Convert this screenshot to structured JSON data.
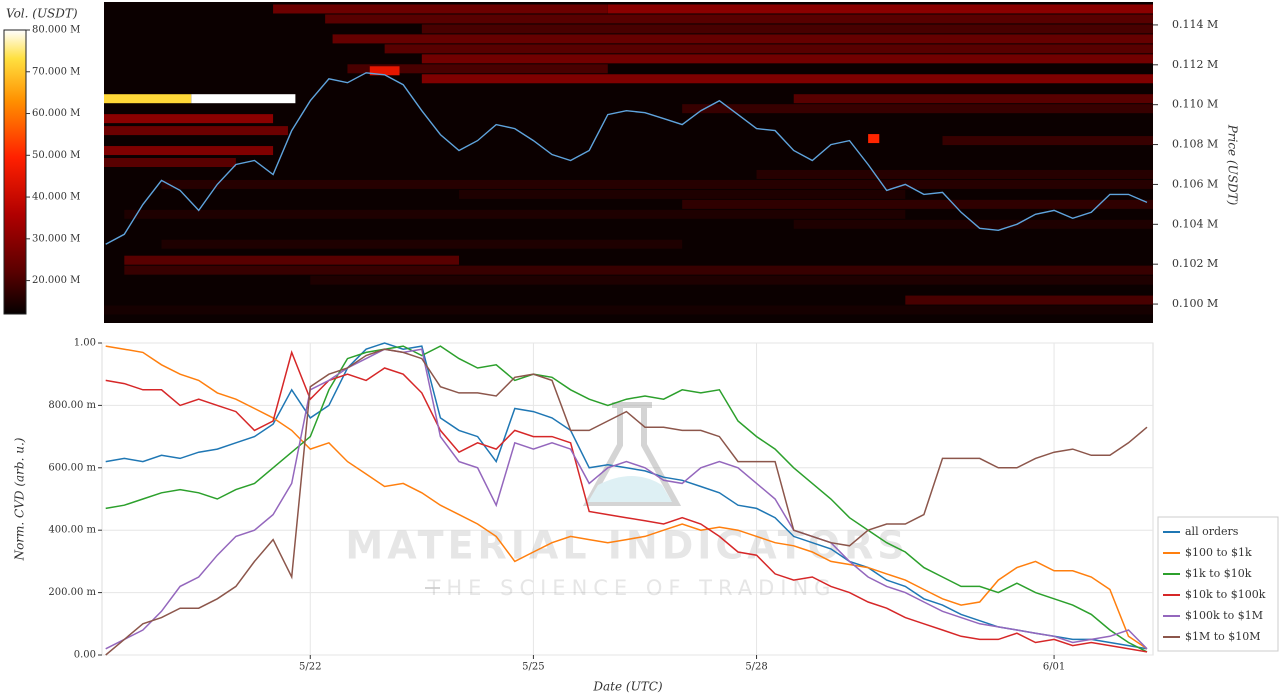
{
  "chart_data": [
    {
      "type": "heatmap",
      "y_label": "Price (USDT)",
      "colorbar_label": "Vol. (USDT)",
      "xlim": [
        -2.8,
        11.33
      ],
      "ylim": [
        0.09905,
        0.11515
      ],
      "yticks": [
        {
          "value": 0.1,
          "label": "0.100 M"
        },
        {
          "value": 0.102,
          "label": "0.102 M"
        },
        {
          "value": 0.104,
          "label": "0.104 M"
        },
        {
          "value": 0.106,
          "label": "0.106 M"
        },
        {
          "value": 0.108,
          "label": "0.108 M"
        },
        {
          "value": 0.11,
          "label": "0.110 M"
        },
        {
          "value": 0.112,
          "label": "0.112 M"
        },
        {
          "value": 0.114,
          "label": "0.114 M"
        }
      ],
      "clim": [
        12,
        80
      ],
      "cticks": [
        {
          "value": 20,
          "label": "20.000 M"
        },
        {
          "value": 30,
          "label": "30.000 M"
        },
        {
          "value": 40,
          "label": "40.000 M"
        },
        {
          "value": 50,
          "label": "50.000 M"
        },
        {
          "value": 60,
          "label": "60.000 M"
        },
        {
          "value": 70,
          "label": "70.000 M"
        },
        {
          "value": 80,
          "label": "80.000 M"
        }
      ],
      "heatmap": {
        "price": [
          0.1148,
          0.1148,
          0.1143,
          0.1138,
          0.1133,
          0.1128,
          0.1123,
          0.1118,
          0.1117,
          0.1113,
          0.1103,
          0.1103,
          0.1103,
          0.1098,
          0.1093,
          0.1087,
          0.1083,
          0.1082,
          0.1077,
          0.1071,
          0.1065,
          0.106,
          0.1055,
          0.105,
          0.1045,
          0.104,
          0.103,
          0.1022,
          0.1017,
          0.1012,
          0.1002,
          0.0997
        ],
        "start": [
          4.0,
          -0.5,
          0.2,
          1.5,
          0.3,
          1.0,
          1.5,
          0.5,
          0.8,
          1.5,
          -2.8,
          -1.6,
          6.5,
          5.0,
          -2.8,
          -2.8,
          7.5,
          8.5,
          -2.8,
          -2.8,
          6.0,
          -2.0,
          2.0,
          5.0,
          -2.5,
          6.5,
          -2.0,
          -2.5,
          -2.5,
          0.0,
          8.0,
          -2.8
        ],
        "end": [
          11.33,
          4.0,
          11.33,
          11.33,
          11.33,
          11.33,
          11.33,
          4.0,
          1.2,
          11.33,
          -1.6,
          -0.2,
          11.33,
          11.33,
          -0.5,
          -0.3,
          7.65,
          11.33,
          -0.5,
          -1.0,
          11.33,
          11.33,
          8.0,
          11.33,
          8.0,
          11.33,
          5.0,
          2.0,
          11.33,
          11.33,
          11.33,
          11.33
        ],
        "volume": [
          30,
          25,
          22,
          20,
          24,
          22,
          26,
          20,
          45,
          28,
          72,
          80,
          22,
          18,
          30,
          25,
          50,
          18,
          28,
          22,
          16,
          16,
          15,
          17,
          15,
          15,
          15,
          22,
          18,
          15,
          20,
          14
        ]
      },
      "x": [
        -2.75,
        -2.5,
        -2.25,
        -2,
        -1.75,
        -1.5,
        -1.25,
        -1,
        -0.75,
        -0.5,
        -0.25,
        0,
        0.25,
        0.5,
        0.75,
        1,
        1.25,
        1.5,
        1.75,
        2,
        2.25,
        2.5,
        2.75,
        3,
        3.25,
        3.5,
        3.75,
        4,
        4.25,
        4.5,
        4.75,
        5,
        5.25,
        5.5,
        5.75,
        6,
        6.25,
        6.5,
        6.75,
        7,
        7.25,
        7.5,
        7.75,
        8,
        8.25,
        8.5,
        8.75,
        9,
        9.25,
        9.5,
        9.75,
        10,
        10.25,
        10.5,
        10.75,
        11,
        11.25
      ],
      "series": [
        {
          "color": "#5fa3dc",
          "values": [
            0.103,
            0.1035,
            0.105,
            0.1062,
            0.1057,
            0.1047,
            0.106,
            0.107,
            0.1072,
            0.1065,
            0.1087,
            0.1102,
            0.1113,
            0.1111,
            0.1116,
            0.1115,
            0.111,
            0.1097,
            0.1085,
            0.1077,
            0.1082,
            0.109,
            0.1088,
            0.1082,
            0.1075,
            0.1072,
            0.1077,
            0.1095,
            0.1097,
            0.1096,
            0.1093,
            0.109,
            0.1097,
            0.1102,
            0.1095,
            0.1088,
            0.1087,
            0.1077,
            0.1072,
            0.108,
            0.1082,
            0.107,
            0.1057,
            0.106,
            0.1055,
            0.1056,
            0.1046,
            0.1038,
            0.1037,
            0.104,
            0.1045,
            0.1047,
            0.1043,
            0.1046,
            0.1055,
            0.1055,
            0.1051
          ]
        }
      ]
    },
    {
      "type": "line",
      "x_label": "Date (UTC)",
      "y_label": "Norm. CVD (arb. u.)",
      "xlim": [
        -2.8,
        11.33
      ],
      "ylim": [
        0,
        1
      ],
      "xticks": [
        {
          "value": 0,
          "label": "5/22"
        },
        {
          "value": 3,
          "label": "5/25"
        },
        {
          "value": 6,
          "label": "5/28"
        },
        {
          "value": 10,
          "label": "6/01"
        }
      ],
      "yticks": [
        {
          "value": 0,
          "label": "0.00"
        },
        {
          "value": 0.2,
          "label": "200.00 m"
        },
        {
          "value": 0.4,
          "label": "400.00 m"
        },
        {
          "value": 0.6,
          "label": "600.00 m"
        },
        {
          "value": 0.8,
          "label": "800.00 m"
        },
        {
          "value": 1,
          "label": "1.00"
        }
      ],
      "grid": true,
      "legend": "right",
      "watermark": {
        "title": "MATERIAL INDICATORS",
        "subtitle": "THE SCIENCE OF TRADING"
      },
      "x": [
        -2.75,
        -2.5,
        -2.25,
        -2,
        -1.75,
        -1.5,
        -1.25,
        -1,
        -0.75,
        -0.5,
        -0.25,
        0,
        0.25,
        0.5,
        0.75,
        1,
        1.25,
        1.5,
        1.75,
        2,
        2.25,
        2.5,
        2.75,
        3,
        3.25,
        3.5,
        3.75,
        4,
        4.25,
        4.5,
        4.75,
        5,
        5.25,
        5.5,
        5.75,
        6,
        6.25,
        6.5,
        6.75,
        7,
        7.25,
        7.5,
        7.75,
        8,
        8.25,
        8.5,
        8.75,
        9,
        9.25,
        9.5,
        9.75,
        10,
        10.25,
        10.5,
        10.75,
        11,
        11.25
      ],
      "series": [
        {
          "name": "all orders",
          "color": "#1f77b4",
          "values": [
            0.62,
            0.63,
            0.62,
            0.64,
            0.63,
            0.65,
            0.66,
            0.68,
            0.7,
            0.74,
            0.85,
            0.76,
            0.8,
            0.92,
            0.98,
            1.0,
            0.98,
            0.99,
            0.76,
            0.72,
            0.7,
            0.62,
            0.79,
            0.78,
            0.76,
            0.72,
            0.6,
            0.61,
            0.6,
            0.59,
            0.57,
            0.56,
            0.54,
            0.52,
            0.48,
            0.47,
            0.44,
            0.38,
            0.36,
            0.34,
            0.3,
            0.28,
            0.24,
            0.22,
            0.18,
            0.16,
            0.13,
            0.11,
            0.09,
            0.08,
            0.07,
            0.06,
            0.05,
            0.05,
            0.04,
            0.03,
            0.02
          ]
        },
        {
          "name": "$100 to $1k",
          "color": "#ff7f0e",
          "values": [
            0.99,
            0.98,
            0.97,
            0.93,
            0.9,
            0.88,
            0.84,
            0.82,
            0.79,
            0.76,
            0.72,
            0.66,
            0.68,
            0.62,
            0.58,
            0.54,
            0.55,
            0.52,
            0.48,
            0.45,
            0.42,
            0.38,
            0.3,
            0.33,
            0.36,
            0.38,
            0.37,
            0.36,
            0.37,
            0.38,
            0.4,
            0.42,
            0.4,
            0.41,
            0.4,
            0.38,
            0.36,
            0.35,
            0.33,
            0.3,
            0.29,
            0.28,
            0.26,
            0.24,
            0.21,
            0.18,
            0.16,
            0.17,
            0.24,
            0.28,
            0.3,
            0.27,
            0.27,
            0.25,
            0.21,
            0.06,
            0.02
          ]
        },
        {
          "name": "$1k to $10k",
          "color": "#2ca02c",
          "values": [
            0.47,
            0.48,
            0.5,
            0.52,
            0.53,
            0.52,
            0.5,
            0.53,
            0.55,
            0.6,
            0.65,
            0.7,
            0.85,
            0.95,
            0.97,
            0.98,
            0.99,
            0.96,
            0.99,
            0.95,
            0.92,
            0.93,
            0.88,
            0.9,
            0.89,
            0.85,
            0.82,
            0.8,
            0.82,
            0.83,
            0.82,
            0.85,
            0.84,
            0.85,
            0.75,
            0.7,
            0.66,
            0.6,
            0.55,
            0.5,
            0.44,
            0.4,
            0.36,
            0.33,
            0.28,
            0.25,
            0.22,
            0.22,
            0.2,
            0.23,
            0.2,
            0.18,
            0.16,
            0.13,
            0.08,
            0.04,
            0.01
          ]
        },
        {
          "name": "$10k to $100k",
          "color": "#d62728",
          "values": [
            0.88,
            0.87,
            0.85,
            0.85,
            0.8,
            0.82,
            0.8,
            0.78,
            0.72,
            0.75,
            0.97,
            0.82,
            0.88,
            0.9,
            0.88,
            0.92,
            0.9,
            0.84,
            0.72,
            0.65,
            0.68,
            0.66,
            0.72,
            0.7,
            0.7,
            0.68,
            0.46,
            0.45,
            0.44,
            0.43,
            0.42,
            0.44,
            0.42,
            0.38,
            0.33,
            0.32,
            0.26,
            0.24,
            0.25,
            0.22,
            0.2,
            0.17,
            0.15,
            0.12,
            0.1,
            0.08,
            0.06,
            0.05,
            0.05,
            0.07,
            0.04,
            0.05,
            0.03,
            0.04,
            0.03,
            0.02,
            0.01
          ]
        },
        {
          "name": "$100k to $1M",
          "color": "#9467bd",
          "values": [
            0.02,
            0.05,
            0.08,
            0.14,
            0.22,
            0.25,
            0.32,
            0.38,
            0.4,
            0.45,
            0.55,
            0.85,
            0.88,
            0.92,
            0.95,
            0.98,
            0.97,
            0.98,
            0.7,
            0.62,
            0.6,
            0.48,
            0.68,
            0.66,
            0.68,
            0.66,
            0.55,
            0.6,
            0.62,
            0.6,
            0.56,
            0.55,
            0.6,
            0.62,
            0.6,
            0.55,
            0.5,
            0.4,
            0.38,
            0.36,
            0.3,
            0.25,
            0.22,
            0.2,
            0.17,
            0.14,
            0.12,
            0.1,
            0.09,
            0.08,
            0.07,
            0.06,
            0.04,
            0.05,
            0.06,
            0.08,
            0.02
          ]
        },
        {
          "name": "$1M to $10M",
          "color": "#8c564b",
          "values": [
            0.0,
            0.05,
            0.1,
            0.12,
            0.15,
            0.15,
            0.18,
            0.22,
            0.3,
            0.37,
            0.25,
            0.86,
            0.9,
            0.92,
            0.96,
            0.98,
            0.97,
            0.95,
            0.86,
            0.84,
            0.84,
            0.83,
            0.89,
            0.9,
            0.88,
            0.72,
            0.72,
            0.75,
            0.78,
            0.73,
            0.73,
            0.72,
            0.72,
            0.7,
            0.62,
            0.62,
            0.62,
            0.4,
            0.38,
            0.36,
            0.35,
            0.4,
            0.42,
            0.42,
            0.45,
            0.63,
            0.63,
            0.63,
            0.6,
            0.6,
            0.63,
            0.65,
            0.66,
            0.64,
            0.64,
            0.68,
            0.73
          ]
        }
      ]
    }
  ]
}
